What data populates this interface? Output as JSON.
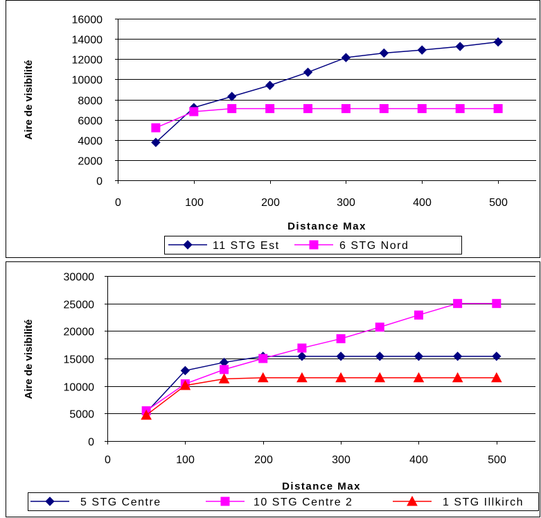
{
  "chart_data": [
    {
      "type": "line",
      "ylabel": "Aire de visibilité",
      "xlabel": "Distance Max",
      "xlim": [
        0,
        550
      ],
      "ylim": [
        0,
        16000
      ],
      "x_ticks": [
        "0",
        "100",
        "200",
        "300",
        "400",
        "500"
      ],
      "y_ticks": [
        "0",
        "2000",
        "4000",
        "6000",
        "8000",
        "10000",
        "12000",
        "14000",
        "16000"
      ],
      "grid": "horizontal",
      "legend": "bottom",
      "x": [
        50,
        100,
        150,
        200,
        250,
        300,
        350,
        400,
        450,
        500
      ],
      "series": [
        {
          "name": "11 STG Est",
          "color": "#000080",
          "marker": "diamond",
          "values": [
            3750,
            7200,
            8300,
            9400,
            10700,
            12150,
            12600,
            12900,
            13250,
            13700
          ]
        },
        {
          "name": "6 STG Nord",
          "color": "#ff00ff",
          "marker": "square",
          "values": [
            5200,
            6800,
            7100,
            7100,
            7100,
            7100,
            7100,
            7100,
            7100,
            7100
          ]
        }
      ]
    },
    {
      "type": "line",
      "ylabel": "Aire de visibilité",
      "xlabel": "Distance Max",
      "xlim": [
        0,
        550
      ],
      "ylim": [
        0,
        30000
      ],
      "x_ticks": [
        "0",
        "100",
        "200",
        "300",
        "400",
        "500"
      ],
      "y_ticks": [
        "0",
        "5000",
        "10000",
        "15000",
        "20000",
        "25000",
        "30000"
      ],
      "grid": "horizontal",
      "legend": "bottom",
      "x": [
        50,
        100,
        150,
        200,
        250,
        300,
        350,
        400,
        450,
        500
      ],
      "series": [
        {
          "name": "5 STG Centre",
          "color": "#000080",
          "marker": "diamond",
          "values": [
            5200,
            12800,
            14300,
            15400,
            15400,
            15400,
            15400,
            15400,
            15400,
            15400
          ]
        },
        {
          "name": "10 STG Centre 2",
          "color": "#ff00ff",
          "marker": "square",
          "values": [
            5500,
            10400,
            13000,
            15000,
            16900,
            18600,
            20700,
            22900,
            25000,
            25000
          ]
        },
        {
          "name": "1 STG Illkirch",
          "color": "#ff0000",
          "marker": "triangle",
          "values": [
            4700,
            10100,
            11300,
            11500,
            11500,
            11500,
            11500,
            11500,
            11500,
            11500
          ]
        }
      ]
    }
  ]
}
